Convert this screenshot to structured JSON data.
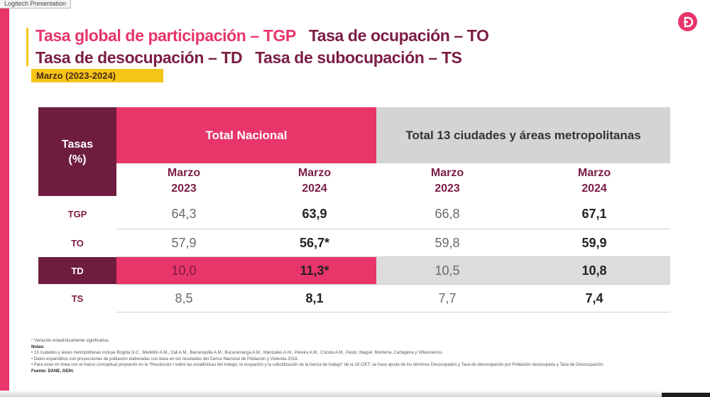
{
  "window": {
    "tab_title": "Logitech Presentation"
  },
  "slide": {
    "title_line1": {
      "part1": "Tasa global de participación – TGP",
      "part2": "Tasa de ocupación – TO"
    },
    "title_line2": {
      "part1": "Tasa de desocupación – TD",
      "part2": "Tasa de subocupación – TS"
    },
    "date_badge": "Marzo (2023-2024)",
    "logo_letter": "D"
  },
  "table": {
    "corner_header": {
      "line1": "Tasas",
      "line2": "(%)"
    },
    "group_headers": [
      "Total Nacional",
      "Total 13 ciudades y áreas metropolitanas"
    ],
    "sub_headers": [
      {
        "month": "Marzo",
        "year": "2023"
      },
      {
        "month": "Marzo",
        "year": "2024"
      },
      {
        "month": "Marzo",
        "year": "2023"
      },
      {
        "month": "Marzo",
        "year": "2024"
      }
    ],
    "rows": [
      {
        "label": "TGP",
        "values": [
          "64,3",
          "63,9",
          "66,8",
          "67,1"
        ]
      },
      {
        "label": "TO",
        "values": [
          "57,9",
          "56,7*",
          "59,8",
          "59,9"
        ]
      },
      {
        "label": "TD",
        "values": [
          "10,0",
          "11,3*",
          "10,5",
          "10,8"
        ]
      },
      {
        "label": "TS",
        "values": [
          "8,5",
          "8,1",
          "7,7",
          "7,4"
        ]
      }
    ]
  },
  "notes": {
    "significance": "* Variación estadísticamente significativa.",
    "heading": "Notas:",
    "items": [
      "• 13 ciudades y áreas metropolitanas incluye Bogotá D.C., Medellín A.M., Cali A.M., Barranquilla A.M., Bucaramanga A.M., Manizales A.M., Pereira A.M., Cúcuta A.M., Pasto, Ibagué, Montería, Cartagena y Villavicencio.",
      "• Datos expandidos con proyecciones de población elaboradas con base en los resultados del Censo Nacional de Población y Vivienda 2018.",
      "• Para estar en línea con el marco conceptual propuesto en la “Resolución I sobre las estadísticas del trabajo, la ocupación y la subutilización de la fuerza de trabajo” de la 19 CIET, se hace ajuste de los términos Desocupados y Tasa de desocupación por Población desocupada y Tasa de Desocupación."
    ],
    "source": "Fuente: DANE, GEIH."
  },
  "colors": {
    "pink": "#e8356a",
    "maroon": "#6e1d3f",
    "yellow": "#f5c518",
    "grey": "#d4d4d2"
  }
}
